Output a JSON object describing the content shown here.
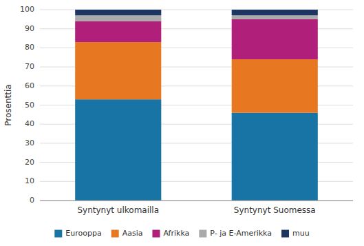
{
  "chart_data": {
    "type": "bar",
    "stacked": true,
    "categories": [
      "Syntynyt ulkomailla",
      "Syntynyt Suomessa"
    ],
    "series": [
      {
        "name": "Eurooppa",
        "color": "#1874a4",
        "values": [
          53,
          46
        ]
      },
      {
        "name": "Aasia",
        "color": "#e87722",
        "values": [
          30,
          28
        ]
      },
      {
        "name": "Afrikka",
        "color": "#b0207a",
        "values": [
          11,
          21
        ]
      },
      {
        "name": "P- ja E-Amerikka",
        "color": "#aaaaaa",
        "values": [
          3,
          2
        ]
      },
      {
        "name": "muu",
        "color": "#1e3461",
        "values": [
          3,
          3
        ]
      }
    ],
    "ylabel": "Prosenttia",
    "ylim": [
      0,
      100
    ],
    "yticks": [
      0,
      10,
      20,
      30,
      40,
      50,
      60,
      70,
      80,
      90,
      100
    ],
    "grid": true,
    "legend": "bottom"
  }
}
